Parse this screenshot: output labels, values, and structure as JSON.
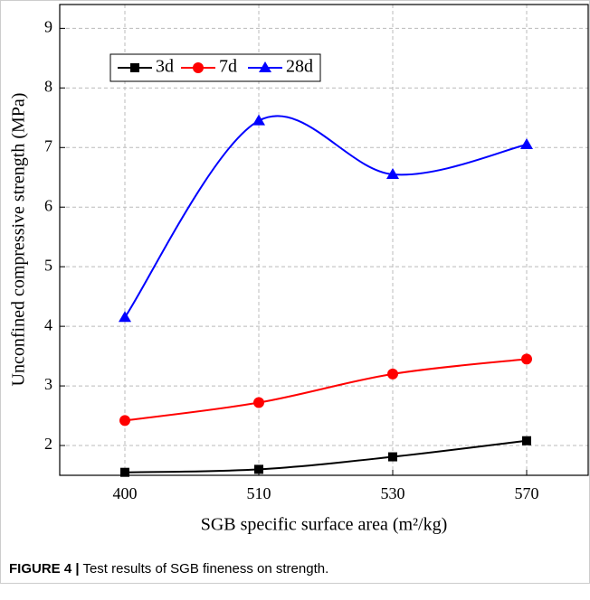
{
  "chart_data": {
    "type": "line",
    "x_label": "SGB specific surface area (m²/kg)",
    "y_label": "Unconfined compressive strength (MPa)",
    "categories": [
      "400",
      "510",
      "530",
      "570"
    ],
    "series": [
      {
        "name": "3d",
        "color": "#000000",
        "marker": "square",
        "values": [
          1.55,
          1.6,
          1.81,
          2.08
        ]
      },
      {
        "name": "7d",
        "color": "#ff0000",
        "marker": "circle",
        "values": [
          2.42,
          2.72,
          3.2,
          3.45
        ]
      },
      {
        "name": "28d",
        "color": "#0000ff",
        "marker": "triangle",
        "values": [
          4.15,
          7.45,
          6.55,
          7.05
        ]
      }
    ],
    "ylim": [
      1.5,
      9.4
    ],
    "yticks": [
      2,
      3,
      4,
      5,
      6,
      7,
      8,
      9
    ],
    "grid": true,
    "smooth": true
  },
  "figure_caption": {
    "label": "FIGURE 4 |",
    "text": "Test results of SGB fineness on strength."
  }
}
